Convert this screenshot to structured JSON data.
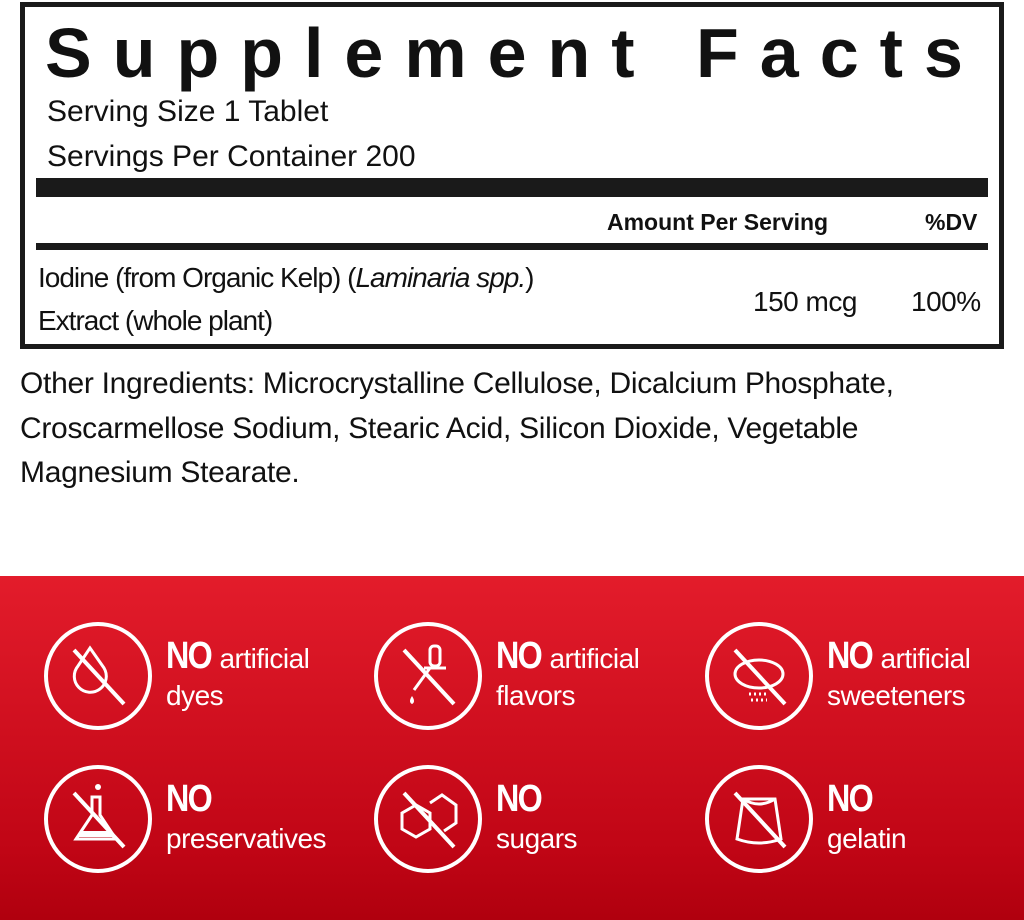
{
  "facts": {
    "title": "Supplement Facts",
    "serving_size": "Serving Size 1 Tablet",
    "servings_per_container": "Servings Per Container 200",
    "header_amount": "Amount Per Serving",
    "header_dv": "%DV",
    "ingredient": {
      "line1_prefix": "Iodine (from Organic Kelp) (",
      "line1_italic": "Laminaria spp.",
      "line1_suffix": ")",
      "line2": "Extract (whole plant)",
      "amount": "150 mcg",
      "dv": "100%"
    }
  },
  "other_ingredients": "Other Ingredients: Microcrystalline Cellulose, Dicalcium Phosphate, Croscarmellose Sodium, Stearic Acid, Silicon Dioxide, Vegetable Magnesium Stearate.",
  "band_color": "#e31c2b",
  "claims": [
    {
      "icon": "no-dye-drop-icon",
      "no": "NO",
      "inline": "artificial",
      "line2": "dyes"
    },
    {
      "icon": "no-dropper-icon",
      "no": "NO",
      "inline": "artificial",
      "line2": "flavors"
    },
    {
      "icon": "no-sweetener-icon",
      "no": "NO",
      "inline": "artificial",
      "line2": "sweeteners"
    },
    {
      "icon": "no-flask-icon",
      "no": "NO",
      "inline": "",
      "line2": "preservatives"
    },
    {
      "icon": "no-sugar-cubes-icon",
      "no": "NO",
      "inline": "",
      "line2": "sugars"
    },
    {
      "icon": "no-gelatin-icon",
      "no": "NO",
      "inline": "",
      "line2": "gelatin"
    }
  ]
}
